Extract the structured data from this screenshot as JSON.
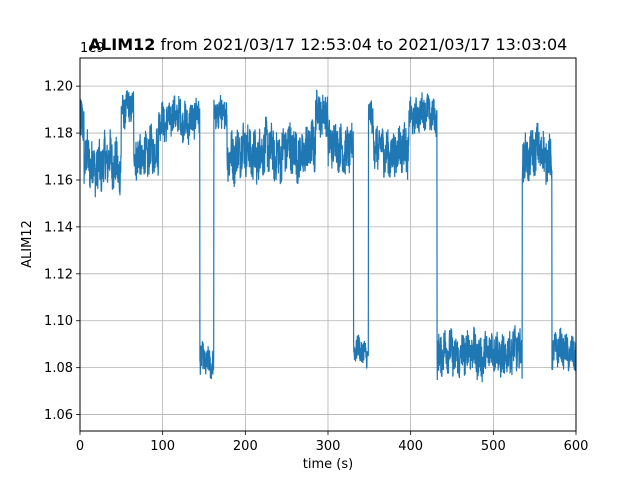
{
  "chart_data": {
    "type": "line",
    "title_bold": "ALIM12",
    "title_rest": " from 2021/03/17 12:53:04 to 2021/03/17 13:03:04",
    "xlabel": "time (s)",
    "ylabel": "ALIM12",
    "offset_label": "1e9",
    "xlim": [
      0,
      600
    ],
    "ylim": [
      1.053,
      1.212
    ],
    "x_ticks": [
      0,
      100,
      200,
      300,
      400,
      500,
      600
    ],
    "x_tick_labels": [
      "0",
      "100",
      "200",
      "300",
      "400",
      "500",
      "600"
    ],
    "y_ticks": [
      1.06,
      1.08,
      1.1,
      1.12,
      1.14,
      1.16,
      1.18,
      1.2
    ],
    "y_tick_labels": [
      "1.06",
      "1.08",
      "1.10",
      "1.12",
      "1.14",
      "1.16",
      "1.18",
      "1.20"
    ],
    "grid": true,
    "line_color": "#1f77b4",
    "series": [
      {
        "segments": [
          {
            "x0": 0,
            "x1": 5,
            "mean": 1.182,
            "amp": 0.012
          },
          {
            "x0": 5,
            "x1": 50,
            "mean": 1.167,
            "amp": 0.012
          },
          {
            "x0": 50,
            "x1": 65,
            "mean": 1.19,
            "amp": 0.008
          },
          {
            "x0": 65,
            "x1": 95,
            "mean": 1.171,
            "amp": 0.011
          },
          {
            "x0": 95,
            "x1": 145,
            "mean": 1.186,
            "amp": 0.009
          },
          {
            "x0": 145,
            "x1": 162,
            "mean": 1.083,
            "amp": 0.007
          },
          {
            "x0": 162,
            "x1": 178,
            "mean": 1.187,
            "amp": 0.008
          },
          {
            "x0": 178,
            "x1": 285,
            "mean": 1.172,
            "amp": 0.012
          },
          {
            "x0": 285,
            "x1": 300,
            "mean": 1.19,
            "amp": 0.01
          },
          {
            "x0": 300,
            "x1": 331,
            "mean": 1.174,
            "amp": 0.011
          },
          {
            "x0": 331,
            "x1": 349,
            "mean": 1.087,
            "amp": 0.006
          },
          {
            "x0": 349,
            "x1": 355,
            "mean": 1.188,
            "amp": 0.008
          },
          {
            "x0": 355,
            "x1": 398,
            "mean": 1.172,
            "amp": 0.011
          },
          {
            "x0": 398,
            "x1": 432,
            "mean": 1.188,
            "amp": 0.008
          },
          {
            "x0": 432,
            "x1": 535,
            "mean": 1.086,
            "amp": 0.01
          },
          {
            "x0": 535,
            "x1": 571,
            "mean": 1.171,
            "amp": 0.011
          },
          {
            "x0": 571,
            "x1": 600,
            "mean": 1.087,
            "amp": 0.008
          }
        ]
      }
    ]
  }
}
